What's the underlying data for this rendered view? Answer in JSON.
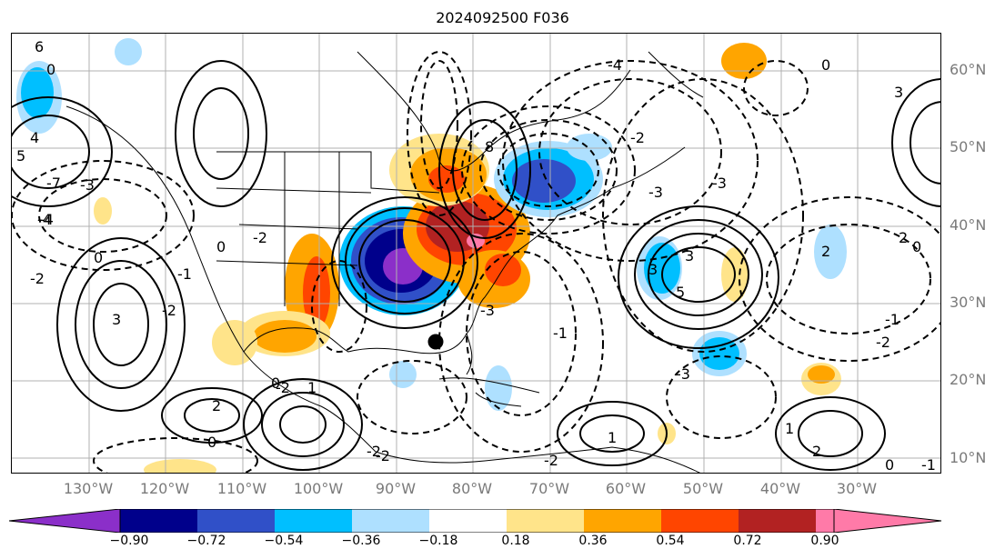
{
  "title": "2024092500 F036",
  "lat_labels": [
    "60°N",
    "50°N",
    "40°N",
    "30°N",
    "20°N",
    "10°N"
  ],
  "lon_labels": [
    "130°W",
    "120°W",
    "110°W",
    "100°W",
    "90°W",
    "80°W",
    "70°W",
    "60°W",
    "50°W",
    "40°W",
    "30°W"
  ],
  "colorbar": {
    "ticks": [
      "−0.90",
      "−0.72",
      "−0.54",
      "−0.36",
      "−0.18",
      "0.18",
      "0.36",
      "0.54",
      "0.72",
      "0.90"
    ],
    "colors": [
      "#8b2fc9",
      "#00008b",
      "#3050c8",
      "#00bfff",
      "#aee0ff",
      "#ffffff",
      "#ffe48a",
      "#ffa500",
      "#ff4500",
      "#b22222",
      "#ff7aa8"
    ]
  },
  "contour_labels": [
    "6",
    "0",
    "4",
    "-4",
    "5",
    "-7",
    "-3",
    "-4",
    "-2",
    "0",
    "3",
    "-2",
    "0",
    "-2",
    "2",
    "1",
    "0",
    "-2",
    "-1",
    "8",
    "-1",
    "-3",
    "3",
    "5",
    "-3",
    "2",
    "2",
    "-2",
    "1",
    "3",
    "-4",
    "-2",
    "-3",
    "-2",
    "0",
    "-3",
    "2",
    "3",
    "1",
    "0",
    "-1",
    "-2",
    "-2",
    "0",
    "-1",
    "0"
  ],
  "markers": [
    "storm-center-dot"
  ]
}
